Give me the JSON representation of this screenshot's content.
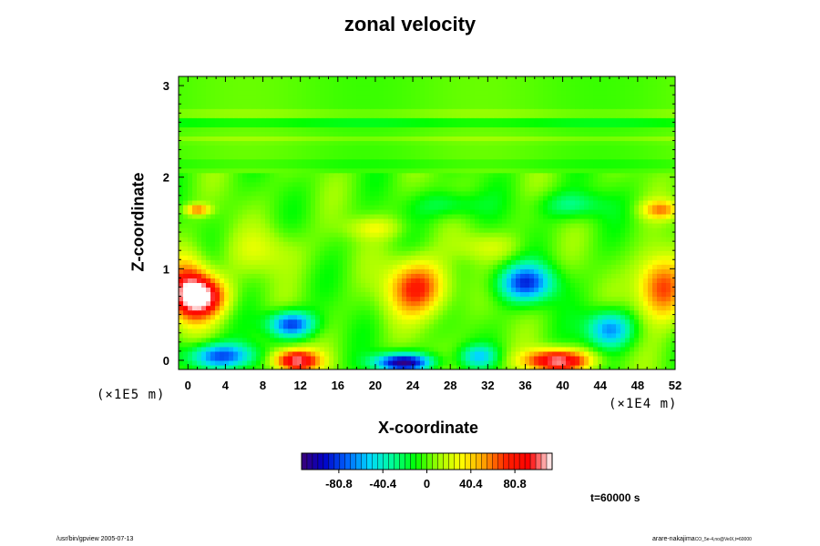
{
  "chart_data": {
    "type": "heatmap",
    "title": "zonal velocity",
    "xlabel": "X-coordinate",
    "ylabel": "Z-coordinate",
    "x_unit_label": "(×1E4 m)",
    "y_unit_label": "(×1E5 m)",
    "x_ticks": [
      0,
      4,
      8,
      12,
      16,
      20,
      24,
      28,
      32,
      36,
      40,
      44,
      48,
      52
    ],
    "y_ticks": [
      0,
      1,
      2,
      3
    ],
    "xlim": [
      -1,
      52
    ],
    "ylim": [
      -0.1,
      3.1
    ],
    "colorbar": {
      "tick_values": [
        -80.8,
        -40.4,
        0,
        40.4,
        80.8
      ],
      "tick_labels": [
        "-80.8",
        "-40.4",
        "0",
        "40.4",
        "80.8"
      ],
      "range": [
        -115,
        115
      ],
      "colors": [
        "#3a0078",
        "#0000c8",
        "#0064ff",
        "#00d8ff",
        "#00ff96",
        "#00ff00",
        "#a0ff00",
        "#ffff00",
        "#ffa000",
        "#ff2000",
        "#ff0000",
        "#ffffff"
      ]
    },
    "features": [
      {
        "x": 1.5,
        "z": 0.7,
        "value": 100,
        "sx": 2.6,
        "sz": 0.22
      },
      {
        "x": 0.0,
        "z": 0.8,
        "value": 70,
        "sx": 2.2,
        "sz": 0.35
      },
      {
        "x": 50.5,
        "z": 0.8,
        "value": 75,
        "sx": 2.6,
        "sz": 0.35
      },
      {
        "x": 24.5,
        "z": 0.8,
        "value": 75,
        "sx": 3.2,
        "sz": 0.3
      },
      {
        "x": 11.5,
        "z": 0.0,
        "value": 110,
        "sx": 2.4,
        "sz": 0.12
      },
      {
        "x": 39.5,
        "z": 0.0,
        "value": 110,
        "sx": 3.4,
        "sz": 0.12
      },
      {
        "x": 23.0,
        "z": -0.02,
        "value": -110,
        "sx": 3.0,
        "sz": 0.1
      },
      {
        "x": 3.5,
        "z": 0.05,
        "value": -80,
        "sx": 3.5,
        "sz": 0.14
      },
      {
        "x": 11.0,
        "z": 0.4,
        "value": -85,
        "sx": 2.4,
        "sz": 0.14
      },
      {
        "x": 36.0,
        "z": 0.85,
        "value": -80,
        "sx": 3.0,
        "sz": 0.2
      },
      {
        "x": 45.0,
        "z": 0.35,
        "value": -70,
        "sx": 2.4,
        "sz": 0.2
      },
      {
        "x": 31.0,
        "z": 0.05,
        "value": -45,
        "sx": 2.0,
        "sz": 0.12
      },
      {
        "x": 8.5,
        "z": 1.2,
        "value": 20,
        "sx": 4.0,
        "sz": 0.25
      },
      {
        "x": 1.0,
        "z": 1.65,
        "value": 60,
        "sx": 1.3,
        "sz": 0.06
      },
      {
        "x": 50.5,
        "z": 1.65,
        "value": 50,
        "sx": 2.0,
        "sz": 0.1
      },
      {
        "x": 20.0,
        "z": 1.45,
        "value": 25,
        "sx": 3.0,
        "sz": 0.12
      },
      {
        "x": 28.0,
        "z": 1.7,
        "value": -25,
        "sx": 3.5,
        "sz": 0.15
      },
      {
        "x": 41.0,
        "z": 1.7,
        "value": -30,
        "sx": 3.5,
        "sz": 0.15
      },
      {
        "x": 32.0,
        "z": 1.25,
        "value": 20,
        "sx": 3.5,
        "sz": 0.15
      }
    ],
    "upper_bands": [
      {
        "z": 2.6,
        "value": -18
      },
      {
        "z": 2.7,
        "value": 10
      },
      {
        "z": 2.42,
        "value": 8
      },
      {
        "z": 2.15,
        "value": -8
      }
    ]
  },
  "annotations": {
    "time": "t=60000 s",
    "footer_left": "/usr/bin/gpview 2005-07-13",
    "footer_right_main": "arare-nakajima",
    "footer_right_sub": "CO_5e-4,no@VelX,t=60000"
  },
  "colors": {
    "frame": "#000000",
    "background": "#ffffff"
  }
}
